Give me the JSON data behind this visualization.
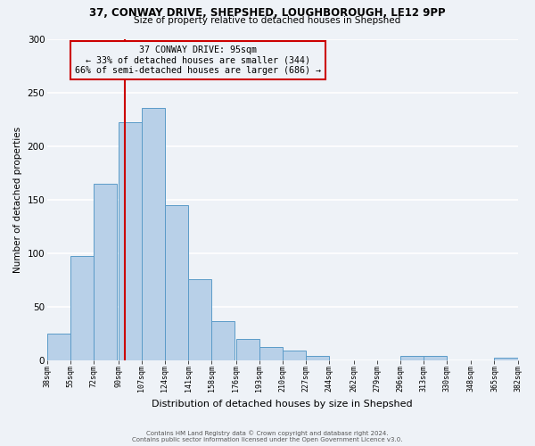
{
  "title1": "37, CONWAY DRIVE, SHEPSHED, LOUGHBOROUGH, LE12 9PP",
  "title2": "Size of property relative to detached houses in Shepshed",
  "xlabel": "Distribution of detached houses by size in Shepshed",
  "ylabel": "Number of detached properties",
  "footnote1": "Contains HM Land Registry data © Crown copyright and database right 2024.",
  "footnote2": "Contains public sector information licensed under the Open Government Licence v3.0.",
  "bar_left_edges": [
    38,
    55,
    72,
    90,
    107,
    124,
    141,
    158,
    176,
    193,
    210,
    227,
    244,
    262,
    279,
    296,
    313,
    330,
    348,
    365
  ],
  "bar_widths": [
    17,
    17,
    17,
    17,
    17,
    17,
    17,
    17,
    17,
    17,
    17,
    17,
    17,
    17,
    17,
    17,
    17,
    17,
    17,
    17
  ],
  "bar_heights": [
    25,
    97,
    165,
    222,
    236,
    145,
    76,
    36,
    20,
    12,
    9,
    4,
    0,
    0,
    0,
    4,
    4,
    0,
    0,
    2
  ],
  "bar_color": "#b8d0e8",
  "bar_edge_color": "#5b9bc8",
  "vline_x": 95,
  "vline_color": "#cc0000",
  "annotation_title": "37 CONWAY DRIVE: 95sqm",
  "annotation_line1": "← 33% of detached houses are smaller (344)",
  "annotation_line2": "66% of semi-detached houses are larger (686) →",
  "annotation_box_color": "#cc0000",
  "xlim": [
    38,
    382
  ],
  "ylim": [
    0,
    300
  ],
  "yticks": [
    0,
    50,
    100,
    150,
    200,
    250,
    300
  ],
  "xtick_labels": [
    "38sqm",
    "55sqm",
    "72sqm",
    "90sqm",
    "107sqm",
    "124sqm",
    "141sqm",
    "158sqm",
    "176sqm",
    "193sqm",
    "210sqm",
    "227sqm",
    "244sqm",
    "262sqm",
    "279sqm",
    "296sqm",
    "313sqm",
    "330sqm",
    "348sqm",
    "365sqm",
    "382sqm"
  ],
  "xtick_positions": [
    38,
    55,
    72,
    90,
    107,
    124,
    141,
    158,
    176,
    193,
    210,
    227,
    244,
    262,
    279,
    296,
    313,
    330,
    348,
    365,
    382
  ],
  "bg_color": "#eef2f7",
  "grid_color": "#ffffff"
}
